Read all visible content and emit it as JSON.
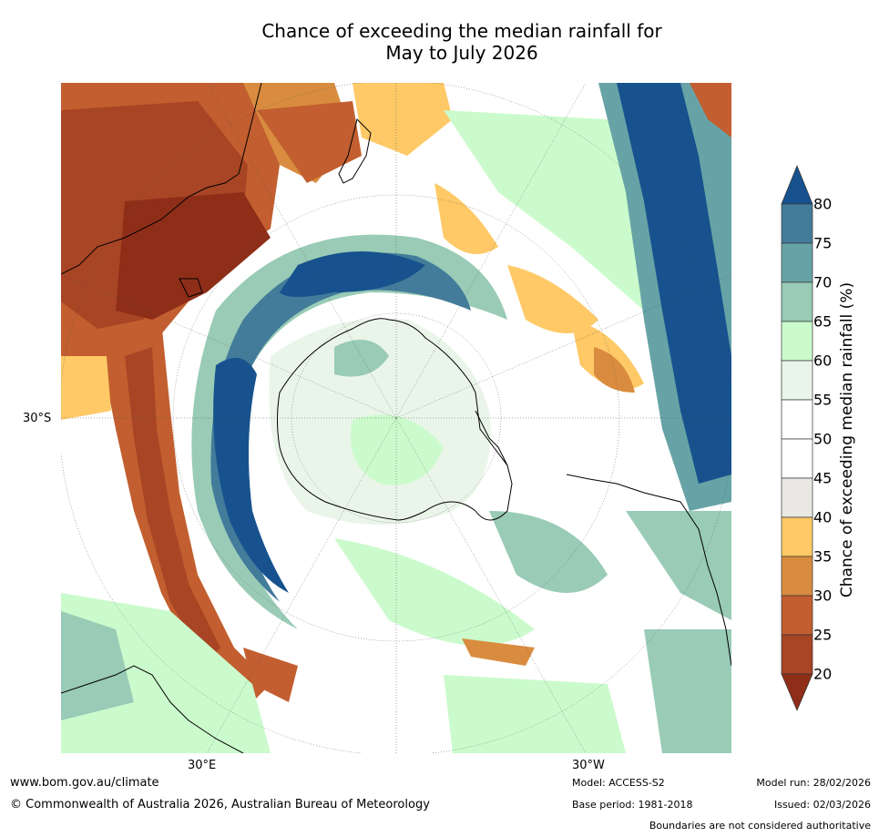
{
  "title_line1": "Chance of exceeding the median rainfall for",
  "title_line2": "May to July 2026",
  "map": {
    "projection": "south-polar stereographic",
    "latitude_label": "30°S",
    "longitude_labels": [
      "30°E",
      "30°W"
    ],
    "colors": {
      "p20": "#8e2e18",
      "p25": "#a84524",
      "p30": "#c25e2f",
      "p35": "#d98c3f",
      "p40": "#fec966",
      "p45": "#eae8e4",
      "p50": "#ffffff",
      "p55": "#ffffff",
      "p60": "#eaf5e9",
      "p65": "#cbfbcc",
      "p70": "#99cbb6",
      "p75": "#67a3a6",
      "p80": "#437c9a",
      "p85": "#17528e"
    }
  },
  "colorbar": {
    "label": "Chance of exceeding median rainfall (%)",
    "ticks": [
      "80",
      "75",
      "70",
      "65",
      "60",
      "55",
      "50",
      "45",
      "40",
      "35",
      "30",
      "25",
      "20"
    ]
  },
  "footer": {
    "website": "www.bom.gov.au/climate",
    "copyright": "© Commonwealth of Australia 2026, Australian Bureau of Meteorology",
    "model": "Model: ACCESS-S2",
    "base_period": "Base period: 1981-2018",
    "model_run": "Model run: 28/02/2026",
    "issued": "Issued: 02/03/2026",
    "disclaimer": "Boundaries are not considered authoritative"
  }
}
